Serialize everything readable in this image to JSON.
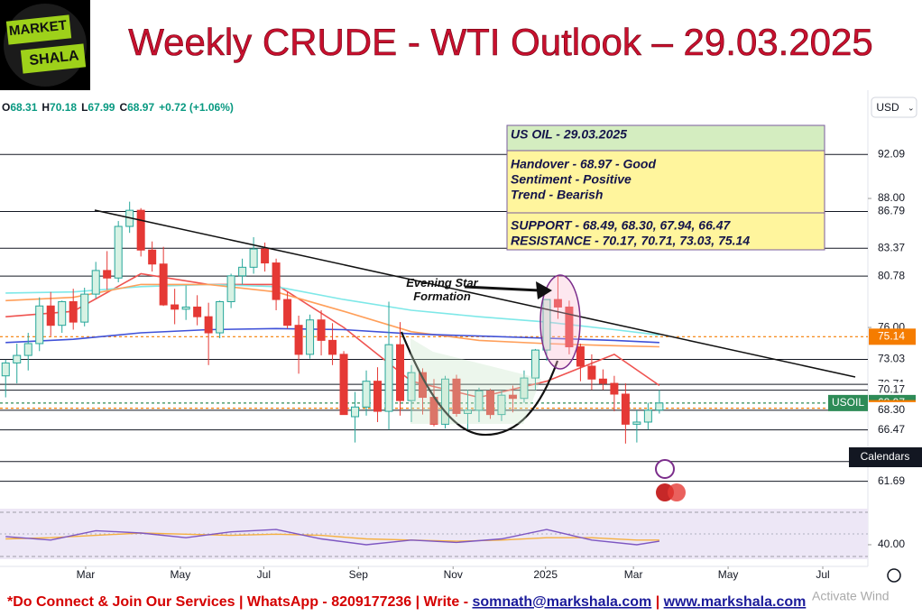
{
  "logo": {
    "line1": "MARKET",
    "line2": "SHALA"
  },
  "chart_data": {
    "type": "candlestick",
    "title": "Weekly CRUDE - WTI Outlook – 29.03.2025",
    "currency": "USD",
    "symbol_label": "USOIL",
    "calendars": "Calendars",
    "ohlc_legend": [
      "O",
      "68.31",
      "H",
      "70.18",
      "L",
      "67.99",
      "C",
      "68.97",
      "+0.72 (+1.06%)"
    ],
    "up_color": "#26a69a",
    "down_color": "#e53935",
    "xlim": [
      -0.5,
      76.5
    ],
    "ylim": [
      59.48,
      98.07
    ],
    "xticks": [
      {
        "value": 7.1,
        "label": "Mar"
      },
      {
        "value": 15.5,
        "label": "May"
      },
      {
        "value": 22.9,
        "label": "Jul"
      },
      {
        "value": 31.3,
        "label": "Sep"
      },
      {
        "value": 39.7,
        "label": "Nov"
      },
      {
        "value": 47.9,
        "label": "2025"
      },
      {
        "value": 55.7,
        "label": "Mar"
      },
      {
        "value": 64.1,
        "label": "May"
      },
      {
        "value": 72.5,
        "label": "Jul"
      }
    ],
    "yticks": [
      {
        "value": 88,
        "label": "88.00"
      },
      {
        "value": 76,
        "label": "76.00"
      }
    ],
    "open": [
      71.5,
      72.7,
      73.4,
      74.5,
      78.0,
      76.2,
      78.4,
      76.5,
      79.1,
      81.3,
      80.6,
      85.4,
      86.9,
      83.2,
      81.9,
      78.1,
      77.7,
      77.9,
      77.0,
      75.5,
      78.4,
      80.8,
      81.6,
      83.3,
      82.0,
      78.6,
      76.2,
      73.5,
      76.7,
      74.8,
      73.5,
      67.7,
      68.6,
      71.0,
      68.2,
      74.4,
      69.2,
      71.8,
      69.5,
      67.0,
      71.2,
      68.0,
      68.3,
      70.1,
      67.9,
      69.7,
      69.4,
      71.3,
      73.9,
      78.6,
      77.9,
      74.2,
      72.4,
      71.2,
      70.8,
      69.8,
      67.0,
      67.2,
      68.31
    ],
    "high": [
      73.0,
      74.5,
      75.5,
      78.8,
      79.3,
      78.5,
      79.6,
      79.7,
      82.1,
      83.1,
      85.9,
      87.7,
      87.1,
      84.0,
      83.5,
      79.6,
      79.9,
      79.0,
      78.3,
      78.5,
      81.0,
      82.4,
      84.4,
      83.9,
      82.4,
      79.3,
      77.1,
      77.2,
      77.6,
      76.4,
      73.8,
      70.0,
      72.0,
      72.3,
      78.4,
      76.5,
      72.5,
      72.2,
      71.2,
      71.5,
      71.6,
      70.2,
      70.4,
      70.3,
      70.1,
      70.6,
      72.0,
      74.0,
      78.6,
      80.8,
      78.5,
      74.5,
      73.5,
      72.1,
      71.5,
      70.8,
      68.3,
      69.0,
      70.18
    ],
    "low": [
      69.5,
      70.8,
      72.0,
      73.8,
      75.2,
      75.5,
      75.8,
      76.1,
      78.7,
      79.5,
      80.2,
      84.8,
      82.6,
      81.2,
      78.0,
      76.3,
      76.7,
      76.2,
      72.5,
      75.0,
      77.8,
      80.0,
      81.0,
      81.2,
      77.6,
      75.9,
      71.7,
      73.1,
      73.4,
      72.5,
      67.9,
      65.3,
      67.8,
      67.2,
      66.5,
      67.8,
      67.2,
      67.9,
      66.8,
      66.6,
      67.7,
      66.5,
      67.2,
      67.5,
      67.3,
      68.1,
      69.0,
      70.2,
      72.9,
      76.8,
      73.5,
      71.0,
      70.2,
      70.2,
      68.2,
      65.2,
      65.3,
      66.5,
      67.99
    ],
    "close": [
      72.7,
      73.4,
      74.5,
      78.0,
      76.2,
      78.4,
      76.5,
      79.1,
      81.3,
      80.6,
      85.4,
      86.9,
      83.2,
      81.9,
      78.1,
      77.7,
      77.9,
      77.0,
      75.5,
      78.4,
      80.8,
      81.6,
      83.3,
      82.0,
      78.6,
      76.2,
      73.5,
      76.7,
      74.8,
      73.5,
      67.9,
      68.6,
      71.0,
      68.2,
      74.4,
      69.2,
      71.8,
      69.5,
      67.0,
      71.2,
      68.0,
      68.3,
      70.1,
      67.9,
      69.7,
      69.4,
      71.3,
      73.9,
      78.6,
      77.9,
      74.2,
      72.4,
      71.2,
      70.8,
      69.8,
      67.0,
      67.2,
      68.3,
      68.97
    ],
    "averages": [
      {
        "color": "#ef5350",
        "x": [
          0,
          6,
          12,
          18,
          24,
          30,
          36,
          42,
          48,
          54,
          58
        ],
        "values": [
          77,
          77.5,
          81,
          80,
          80,
          76,
          71,
          69.5,
          71,
          73.5,
          70.6
        ]
      },
      {
        "color": "#7ee8e8",
        "x": [
          0,
          6,
          12,
          18,
          24,
          30,
          36,
          42,
          48,
          54,
          58
        ],
        "values": [
          79.2,
          79.3,
          79.8,
          80,
          79.8,
          78.6,
          77.6,
          77,
          76.5,
          75.8,
          75.3
        ]
      },
      {
        "color": "#ff9f5a",
        "x": [
          0,
          6,
          12,
          18,
          24,
          30,
          36,
          42,
          48,
          54,
          58
        ],
        "values": [
          78.5,
          78.8,
          80,
          80,
          79.3,
          77.5,
          75.6,
          74.8,
          74.5,
          74.3,
          74.2
        ]
      },
      {
        "color": "#3f51d8",
        "x": [
          0,
          6,
          12,
          18,
          24,
          30,
          36,
          42,
          48,
          54,
          58
        ],
        "values": [
          74.6,
          74.9,
          75.5,
          75.8,
          75.9,
          75.8,
          75.4,
          75.2,
          75.0,
          74.8,
          74.6
        ]
      }
    ],
    "levels": [
      92.09,
      86.79,
      83.37,
      80.78,
      75.14,
      73.03,
      70.71,
      70.17,
      68.97,
      68.49,
      {
        "value": 68.3,
        "label": "68.30"
      },
      66.47,
      63.53,
      61.69
    ],
    "level_colors": [
      "#131722",
      "#131722",
      "#131722",
      "#131722",
      "#f57c00",
      "#131722",
      "#131722",
      "#131722",
      "#2e8b57",
      "#f57c00",
      "#131722",
      "#131722",
      "#131722",
      "#131722"
    ],
    "annotation": "Evening Star Formation",
    "info_box": {
      "title": "US OIL - 29.03.2025",
      "lines": [
        "Handover - 68.97 - Good",
        "Sentiment - Positive",
        "Trend - Bearish"
      ],
      "support": "SUPPORT - 68.49, 68.30, 67.94, 66.47",
      "resistance": "RESISTANCE - 70.17, 70.71, 73.03, 75.14"
    },
    "rsi": {
      "ylim": [
        23.8,
        70
      ],
      "yticks": [
        {
          "value": 40,
          "label": "40.00"
        }
      ],
      "x": [
        0,
        4,
        8,
        12,
        16,
        20,
        24,
        28,
        32,
        36,
        40,
        44,
        48,
        52,
        56,
        58
      ],
      "values": [
        47,
        44,
        52,
        50,
        46,
        51,
        53,
        45,
        40,
        44,
        42,
        45,
        53,
        44,
        40,
        43
      ],
      "ma_values": [
        45,
        46,
        48,
        50,
        49,
        48,
        49,
        48,
        45,
        44,
        43,
        44,
        46,
        46,
        44,
        44
      ]
    }
  },
  "footer": {
    "text": "*Do Connect & Join Our Services | WhatsApp - 8209177236 | Write - ",
    "email": "somnath@markshala.com",
    "sep": " | ",
    "site": "www.markshala.com",
    "watermark": "Activate Wind"
  }
}
